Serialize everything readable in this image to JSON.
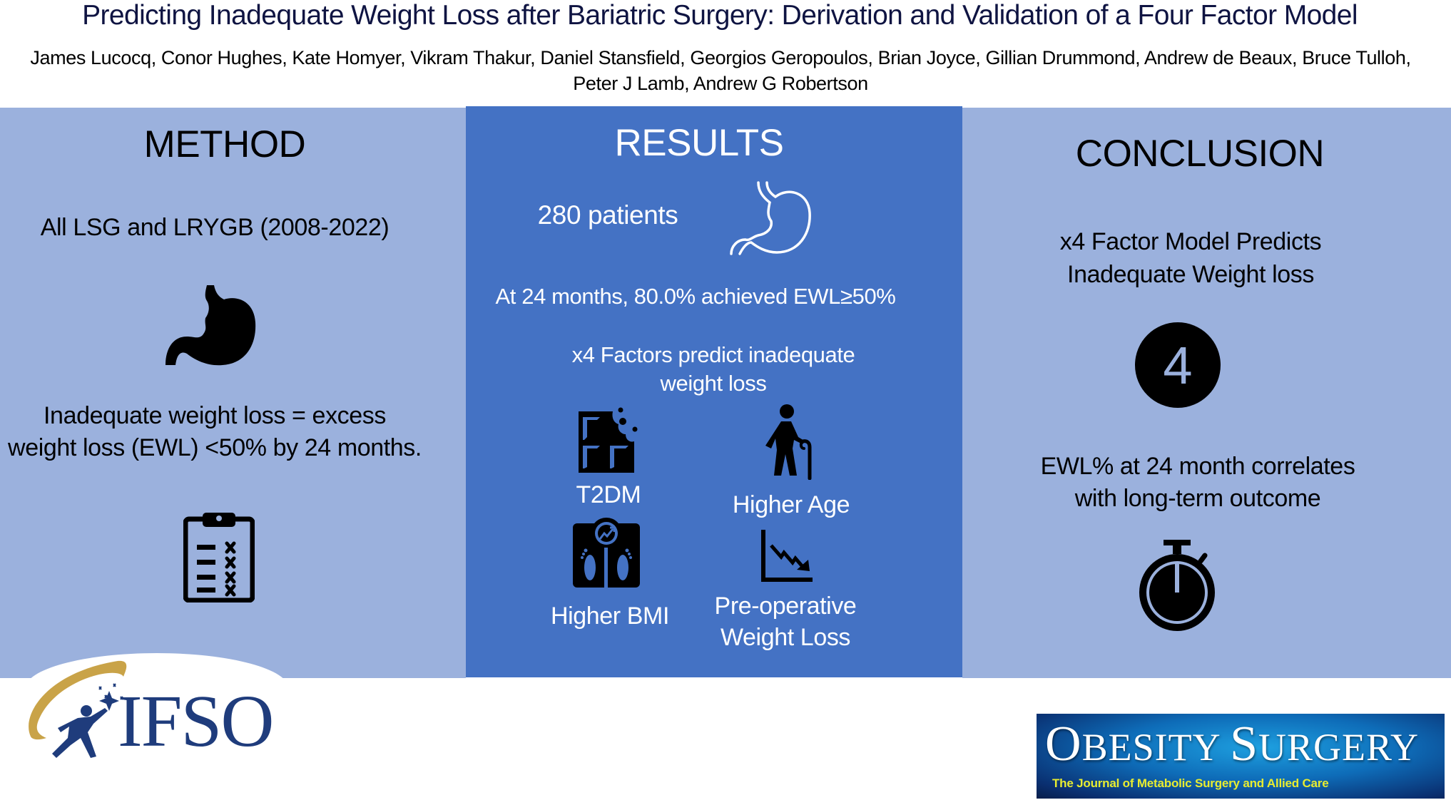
{
  "header": {
    "title": "Predicting Inadequate Weight Loss after Bariatric Surgery: Derivation and Validation of a Four Factor Model",
    "authors_line1": "James Lucocq, Conor Hughes, Kate Homyer, Vikram Thakur, Daniel Stansfield, Georgios Geropoulos, Brian Joyce, Gillian Drummond, Andrew de Beaux, Bruce Tulloh,",
    "authors_line2": "Peter J Lamb, Andrew G Robertson"
  },
  "method": {
    "heading": "METHOD",
    "procedures": "All LSG and LRYGB (2008-2022)",
    "definition_line1": "Inadequate weight loss =  excess",
    "definition_line2": "weight loss (EWL) <50% by 24 months.",
    "icons": [
      "stomach-icon",
      "clipboard-checklist-icon"
    ]
  },
  "results": {
    "heading": "RESULTS",
    "patients": "280 patients",
    "achievement": "At 24 months, 80.0% achieved EWL≥50%",
    "factors_line1": "x4 Factors predict inadequate",
    "factors_line2": "weight loss",
    "factors": [
      {
        "label": "T2DM",
        "icon": "chocolate-bar-icon"
      },
      {
        "label": "Higher Age",
        "icon": "elderly-person-icon"
      },
      {
        "label": "Higher BMI",
        "icon": "weighing-scale-icon"
      },
      {
        "label_line1": "Pre-operative",
        "label_line2": "Weight Loss",
        "icon": "declining-chart-icon"
      }
    ]
  },
  "conclusion": {
    "heading": "CONCLUSION",
    "model_line1": "x4 Factor Model Predicts",
    "model_line2": "Inadequate Weight loss",
    "badge_number": "4",
    "correlation_line1": "EWL% at 24 month correlates",
    "correlation_line2": "with long-term outcome",
    "icons": [
      "number-four-badge-icon",
      "stopwatch-icon"
    ]
  },
  "logos": {
    "ifso": "IFSO",
    "journal_title": "Obesity Surgery",
    "journal_subtitle": "The Journal of Metabolic Surgery and Allied Care"
  },
  "colors": {
    "side_panel": "#9bb1dd",
    "center_panel": "#4472c4",
    "title_text": "#0f1442",
    "ifso_blue": "#1f3c7c",
    "ifso_gold": "#c9a348",
    "journal_subtitle": "#e8ec30"
  }
}
